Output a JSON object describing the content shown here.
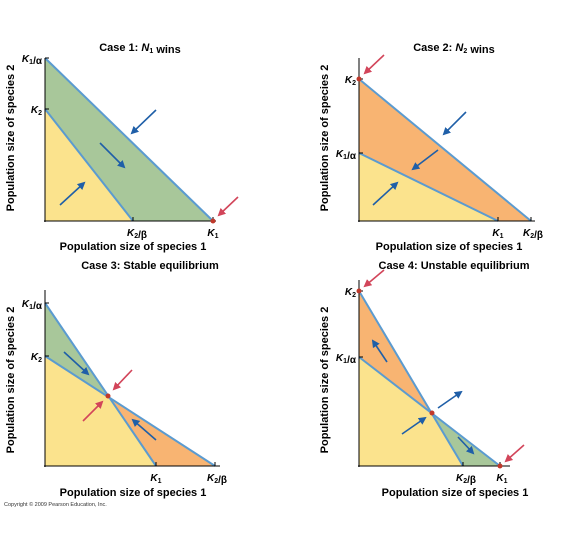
{
  "colors": {
    "green": "#a8c79a",
    "yellow": "#fbe38d",
    "orange": "#f8b472",
    "isocline": "#5b9bd0",
    "blue_arrow": "#1f5fa8",
    "red_arrow": "#d2455a",
    "equilibrium_dot": "#c0392b"
  },
  "copyright": "Copyright © 2009 Pearson Education, Inc.",
  "panels": [
    {
      "title": "Case 1: N1 wins",
      "xlabel": "Population size of species 1",
      "ylabel": "Population size of species 2",
      "y_ticks": [
        "K1/α",
        "K2"
      ],
      "x_ticks": [
        "K2/β",
        "K1"
      ]
    },
    {
      "title": "Case 2: N2 wins",
      "xlabel": "Population size of species 1",
      "ylabel": "Population size of species 2",
      "y_ticks": [
        "K2",
        "K1/α"
      ],
      "x_ticks": [
        "K1",
        "K2/β"
      ]
    },
    {
      "title": "Case 3: Stable equilibrium",
      "xlabel": "Population size of species 1",
      "ylabel": "Population size of species 2",
      "y_ticks": [
        "K1/α",
        "K2"
      ],
      "x_ticks": [
        "K1",
        "K2/β"
      ]
    },
    {
      "title": "Case 4: Unstable equilibrium",
      "xlabel": "Population size of species 1",
      "ylabel": "Population size of species 2",
      "y_ticks": [
        "K2",
        "K1/α"
      ],
      "x_ticks": [
        "K2/β",
        "K1"
      ]
    }
  ]
}
